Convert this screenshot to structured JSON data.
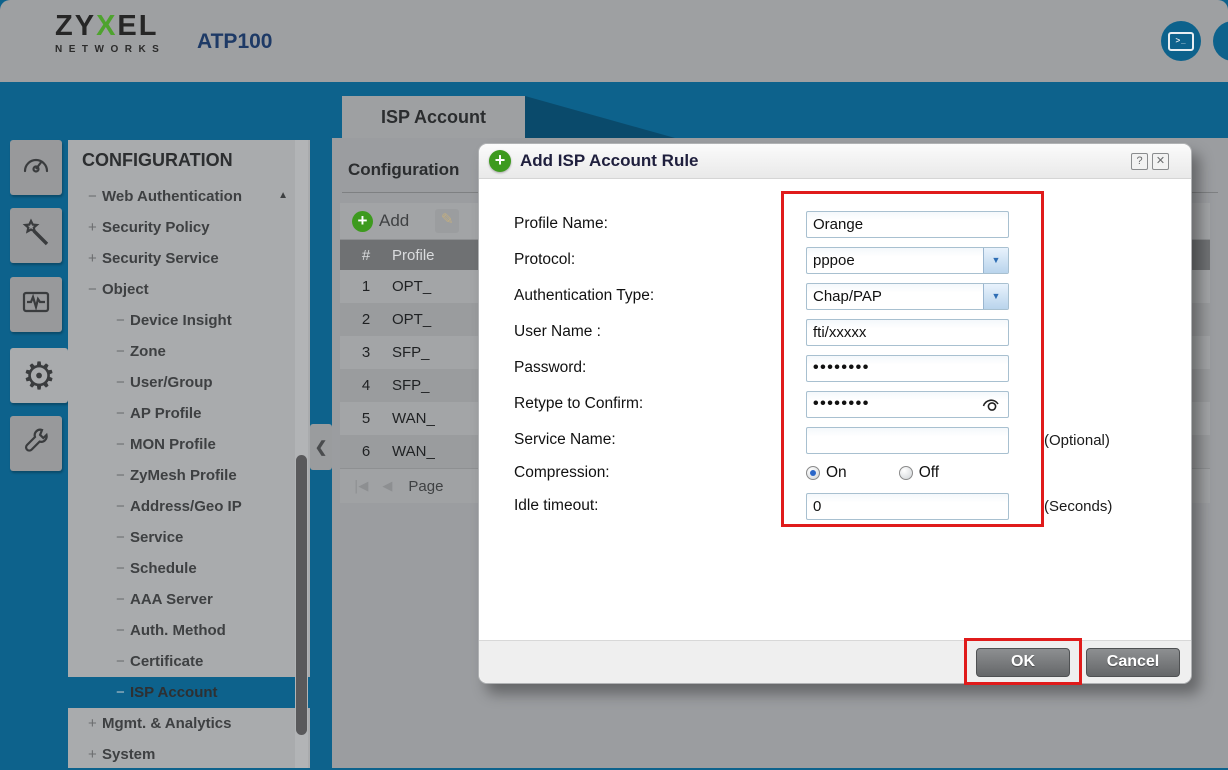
{
  "header": {
    "brand_line1_pre": "ZY",
    "brand_line1_x": "X",
    "brand_line1_post": "EL",
    "brand_line2": "NETWORKS",
    "model": "ATP100",
    "icons": [
      "terminal-console",
      "clipped-circle"
    ]
  },
  "rail": {
    "icons": [
      "dashboard",
      "wizard",
      "monitor",
      "configuration",
      "maintenance"
    ],
    "active": "configuration"
  },
  "nav": {
    "title": "CONFIGURATION",
    "items": [
      {
        "label": "Web Authentication",
        "prefix": "−",
        "level": 1,
        "selected": false,
        "scroll_up": true
      },
      {
        "label": "Security Policy",
        "prefix": "+",
        "level": 1,
        "selected": false
      },
      {
        "label": "Security Service",
        "prefix": "+",
        "level": 1,
        "selected": false
      },
      {
        "label": "Object",
        "prefix": "−",
        "level": 1,
        "selected": false
      },
      {
        "label": "Device Insight",
        "prefix": "−",
        "level": 2,
        "selected": false
      },
      {
        "label": "Zone",
        "prefix": "−",
        "level": 2,
        "selected": false
      },
      {
        "label": "User/Group",
        "prefix": "−",
        "level": 2,
        "selected": false
      },
      {
        "label": "AP Profile",
        "prefix": "−",
        "level": 2,
        "selected": false
      },
      {
        "label": "MON Profile",
        "prefix": "−",
        "level": 2,
        "selected": false
      },
      {
        "label": "ZyMesh Profile",
        "prefix": "−",
        "level": 2,
        "selected": false
      },
      {
        "label": "Address/Geo IP",
        "prefix": "−",
        "level": 2,
        "selected": false
      },
      {
        "label": "Service",
        "prefix": "−",
        "level": 2,
        "selected": false
      },
      {
        "label": "Schedule",
        "prefix": "−",
        "level": 2,
        "selected": false
      },
      {
        "label": "AAA Server",
        "prefix": "−",
        "level": 2,
        "selected": false
      },
      {
        "label": "Auth. Method",
        "prefix": "−",
        "level": 2,
        "selected": false
      },
      {
        "label": "Certificate",
        "prefix": "−",
        "level": 2,
        "selected": false
      },
      {
        "label": "ISP Account",
        "prefix": "−",
        "level": 2,
        "selected": true
      },
      {
        "label": "Mgmt. & Analytics",
        "prefix": "+",
        "level": 1,
        "selected": false
      },
      {
        "label": "System",
        "prefix": "+",
        "level": 1,
        "selected": false
      }
    ]
  },
  "content": {
    "tab": "ISP Account",
    "section_title": "Configuration",
    "toolbar": {
      "add_label": "Add",
      "edit_icon": "pencil"
    },
    "table": {
      "columns": [
        "#",
        "Profile"
      ],
      "rows": [
        [
          "1",
          "OPT_"
        ],
        [
          "2",
          "OPT_"
        ],
        [
          "3",
          "SFP_"
        ],
        [
          "4",
          "SFP_"
        ],
        [
          "5",
          "WAN_"
        ],
        [
          "6",
          "WAN_"
        ]
      ]
    },
    "pagination": {
      "first_icon": "|◀",
      "prev_icon": "◀",
      "label": "Page"
    }
  },
  "dialog": {
    "title": "Add ISP Account Rule",
    "help_glyph": "?",
    "close_glyph": "✕",
    "fields": [
      {
        "name": "profile-name",
        "label": "Profile Name:",
        "type": "text",
        "value": "Orange"
      },
      {
        "name": "protocol",
        "label": "Protocol:",
        "type": "select",
        "value": "pppoe"
      },
      {
        "name": "authentication-type",
        "label": "Authentication Type:",
        "type": "select",
        "value": "Chap/PAP"
      },
      {
        "name": "user-name",
        "label": "User Name :",
        "type": "text",
        "value": "fti/xxxxx"
      },
      {
        "name": "password",
        "label": "Password:",
        "type": "password",
        "value": "••••••••"
      },
      {
        "name": "retype-to-confirm",
        "label": "Retype to Confirm:",
        "type": "password-eye",
        "value": "••••••••"
      },
      {
        "name": "service-name",
        "label": "Service Name:",
        "type": "text",
        "value": "",
        "suffix": "(Optional)"
      },
      {
        "name": "compression",
        "label": "Compression:",
        "type": "radio",
        "options": [
          "On",
          "Off"
        ],
        "selected": "On",
        "compact": true
      },
      {
        "name": "idle-timeout",
        "label": "Idle timeout:",
        "type": "text",
        "value": "0",
        "suffix": "(Seconds)"
      }
    ],
    "buttons": {
      "ok": "OK",
      "cancel": "Cancel"
    }
  },
  "colors": {
    "teal": "#0d628c",
    "header_gray": "#9ea0a2",
    "nav_gray": "#a9abad",
    "table_header": "#6f7173",
    "add_green": "#3d9a1e",
    "brand_green": "#4ea32e",
    "model_navy": "#1e3a66",
    "annotation_red": "#e01b1b",
    "dropdown_blue": "#2e6db4"
  }
}
